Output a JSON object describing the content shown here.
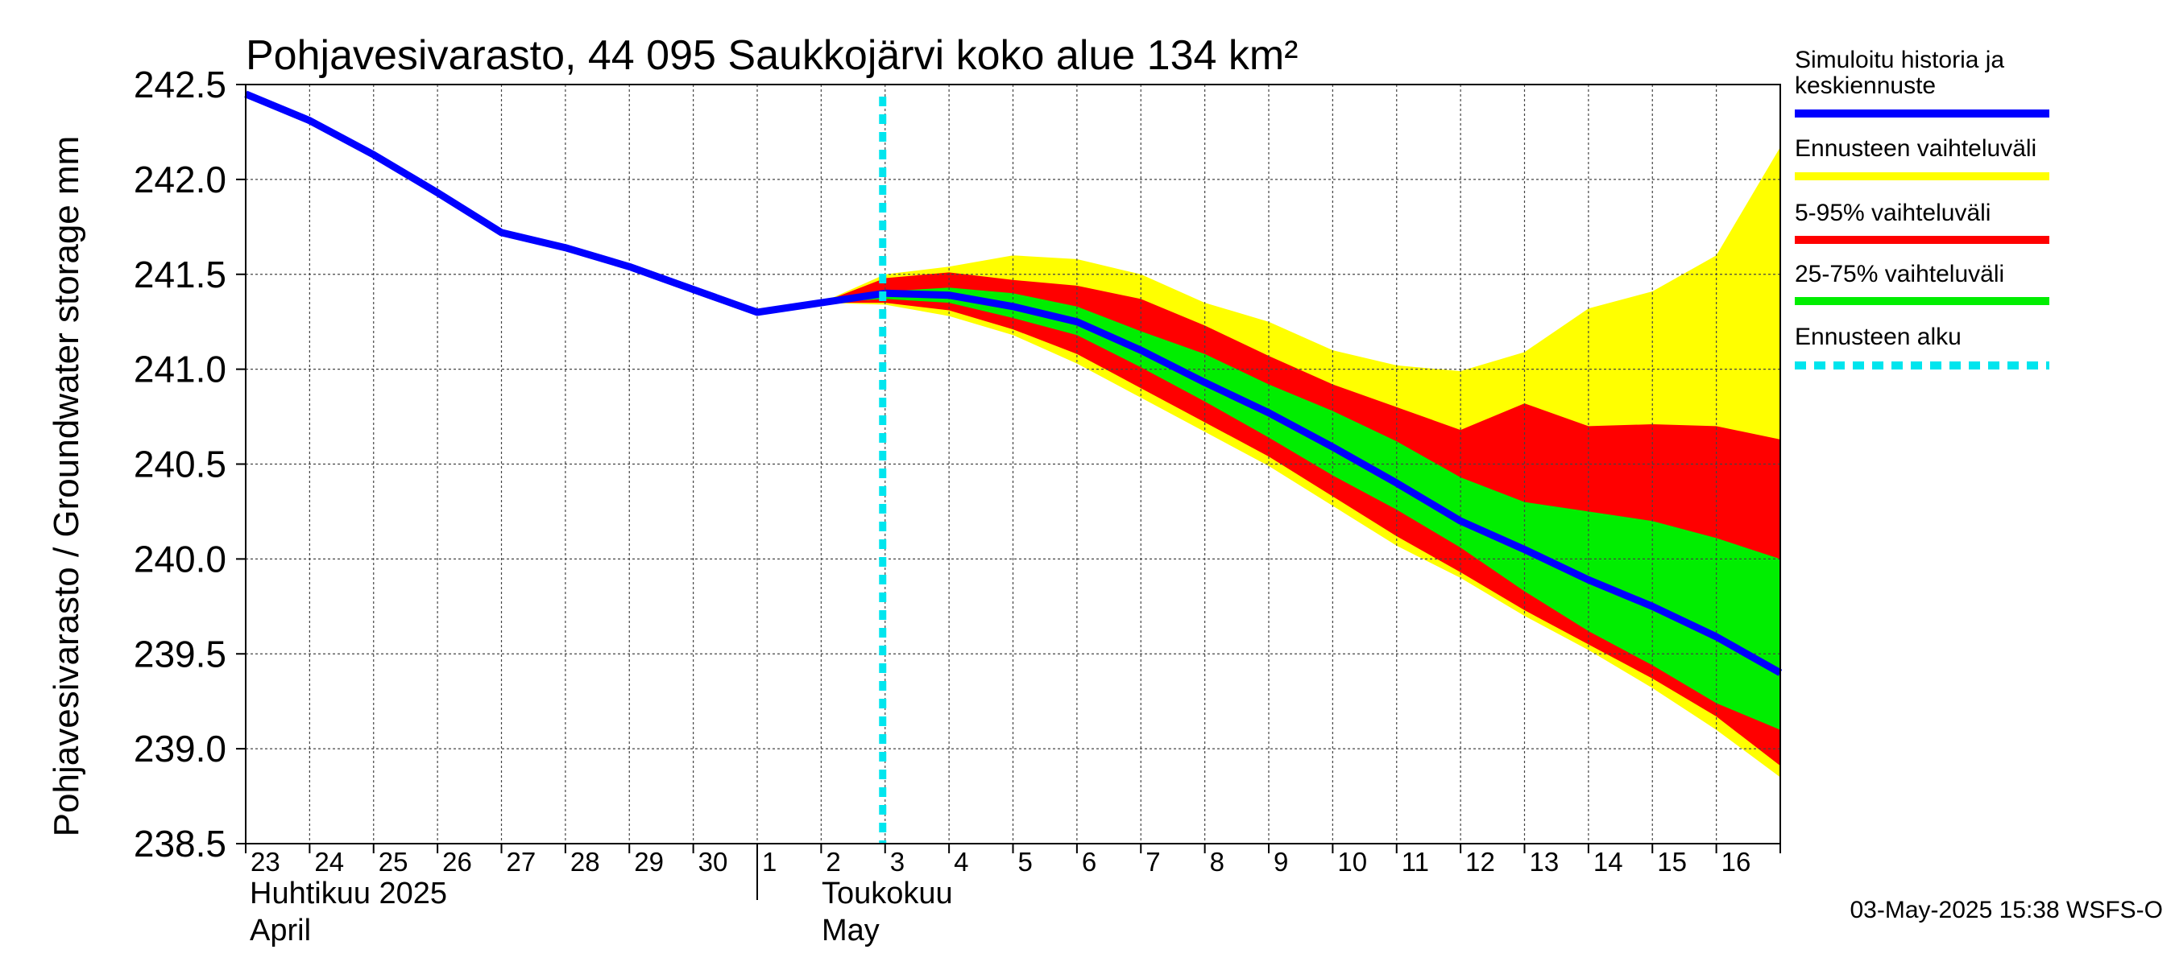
{
  "chart_data": {
    "type": "area",
    "title": "Pohjavesivarasto, 44 095 Saukkojärvi koko alue 134 km²",
    "ylabel": "Pohjavesivarasto / Groundwater storage   mm",
    "ylim": [
      238.5,
      242.5
    ],
    "yticks": [
      238.5,
      239.0,
      239.5,
      240.0,
      240.5,
      241.0,
      241.5,
      242.0,
      242.5
    ],
    "ytick_labels": [
      "238.5",
      "239.0",
      "239.5",
      "240.0",
      "240.5",
      "241.0",
      "241.5",
      "242.0",
      "242.5"
    ],
    "x_start_day": 23,
    "x_end_day": 47,
    "xtick_labels": [
      "23",
      "24",
      "25",
      "26",
      "27",
      "28",
      "29",
      "30",
      "1",
      "2",
      "3",
      "4",
      "5",
      "6",
      "7",
      "8",
      "9",
      "10",
      "11",
      "12",
      "13",
      "14",
      "15",
      "16"
    ],
    "month_labels": [
      {
        "fi": "Huhtikuu  2025",
        "en": "April",
        "day": 23
      },
      {
        "fi": "Toukokuu",
        "en": "May",
        "day": 31
      }
    ],
    "forecast_start_day": 33,
    "history": {
      "name": "Simuloitu historia ja keskiennuste",
      "x": [
        23,
        24,
        25,
        26,
        27,
        28,
        29,
        30,
        31,
        32,
        33
      ],
      "y": [
        242.45,
        242.31,
        242.13,
        241.93,
        241.72,
        241.64,
        241.54,
        241.42,
        241.3,
        241.35,
        241.4
      ]
    },
    "median": {
      "name": "Simuloitu historia ja keskiennuste",
      "x": [
        33,
        34,
        35,
        36,
        37,
        38,
        39,
        40,
        41,
        42,
        43,
        44,
        45,
        46,
        47
      ],
      "y": [
        241.4,
        241.39,
        241.33,
        241.25,
        241.1,
        240.93,
        240.77,
        240.59,
        240.4,
        240.2,
        240.05,
        239.89,
        239.75,
        239.59,
        239.4
      ]
    },
    "bands": [
      {
        "name": "Ennusteen vaihteluväli",
        "color": "#ffff00",
        "x": [
          32,
          33,
          34,
          35,
          36,
          37,
          38,
          39,
          40,
          41,
          42,
          43,
          44,
          45,
          46,
          47
        ],
        "lower": [
          241.35,
          241.34,
          241.28,
          241.18,
          241.03,
          240.85,
          240.67,
          240.49,
          240.28,
          240.07,
          239.9,
          239.7,
          239.52,
          239.32,
          239.1,
          238.85
        ],
        "upper": [
          241.35,
          241.5,
          241.54,
          241.6,
          241.58,
          241.5,
          241.35,
          241.25,
          241.1,
          241.02,
          240.99,
          241.09,
          241.32,
          241.41,
          241.6,
          242.17
        ]
      },
      {
        "name": "5-95% vaihteluväli",
        "color": "#ff0000",
        "x": [
          32,
          33,
          34,
          35,
          36,
          37,
          38,
          39,
          40,
          41,
          42,
          43,
          44,
          45,
          46,
          47
        ],
        "lower": [
          241.35,
          241.35,
          241.31,
          241.21,
          241.08,
          240.9,
          240.72,
          240.54,
          240.33,
          240.12,
          239.93,
          239.73,
          239.55,
          239.37,
          239.17,
          238.91
        ],
        "upper": [
          241.35,
          241.48,
          241.51,
          241.47,
          241.44,
          241.37,
          241.23,
          241.07,
          240.92,
          240.8,
          240.68,
          240.82,
          240.7,
          240.71,
          240.7,
          240.63
        ]
      },
      {
        "name": "25-75% vaihteluväli",
        "color": "#00ee00",
        "x": [
          32,
          33,
          34,
          35,
          36,
          37,
          38,
          39,
          40,
          41,
          42,
          43,
          44,
          45,
          46,
          47
        ],
        "lower": [
          241.35,
          241.37,
          241.35,
          241.27,
          241.18,
          241.01,
          240.83,
          240.64,
          240.44,
          240.26,
          240.06,
          239.83,
          239.62,
          239.44,
          239.24,
          239.1
        ],
        "upper": [
          241.35,
          241.41,
          241.43,
          241.4,
          241.33,
          241.2,
          241.08,
          240.92,
          240.78,
          240.62,
          240.43,
          240.3,
          240.25,
          240.2,
          240.11,
          240.0
        ]
      }
    ],
    "legend": [
      {
        "label": "Simuloitu historia ja keskiennuste",
        "color": "#0000ff",
        "style": "solid"
      },
      {
        "label": "Ennusteen vaihteluväli",
        "color": "#ffff00",
        "style": "solid"
      },
      {
        "label": "5-95% vaihteluväli",
        "color": "#ff0000",
        "style": "solid"
      },
      {
        "label": "25-75% vaihteluväli",
        "color": "#00ee00",
        "style": "solid"
      },
      {
        "label": "Ennusteen alku",
        "color": "#00e5ee",
        "style": "dashed"
      }
    ],
    "footer": "03-May-2025 15:38 WSFS-O"
  }
}
